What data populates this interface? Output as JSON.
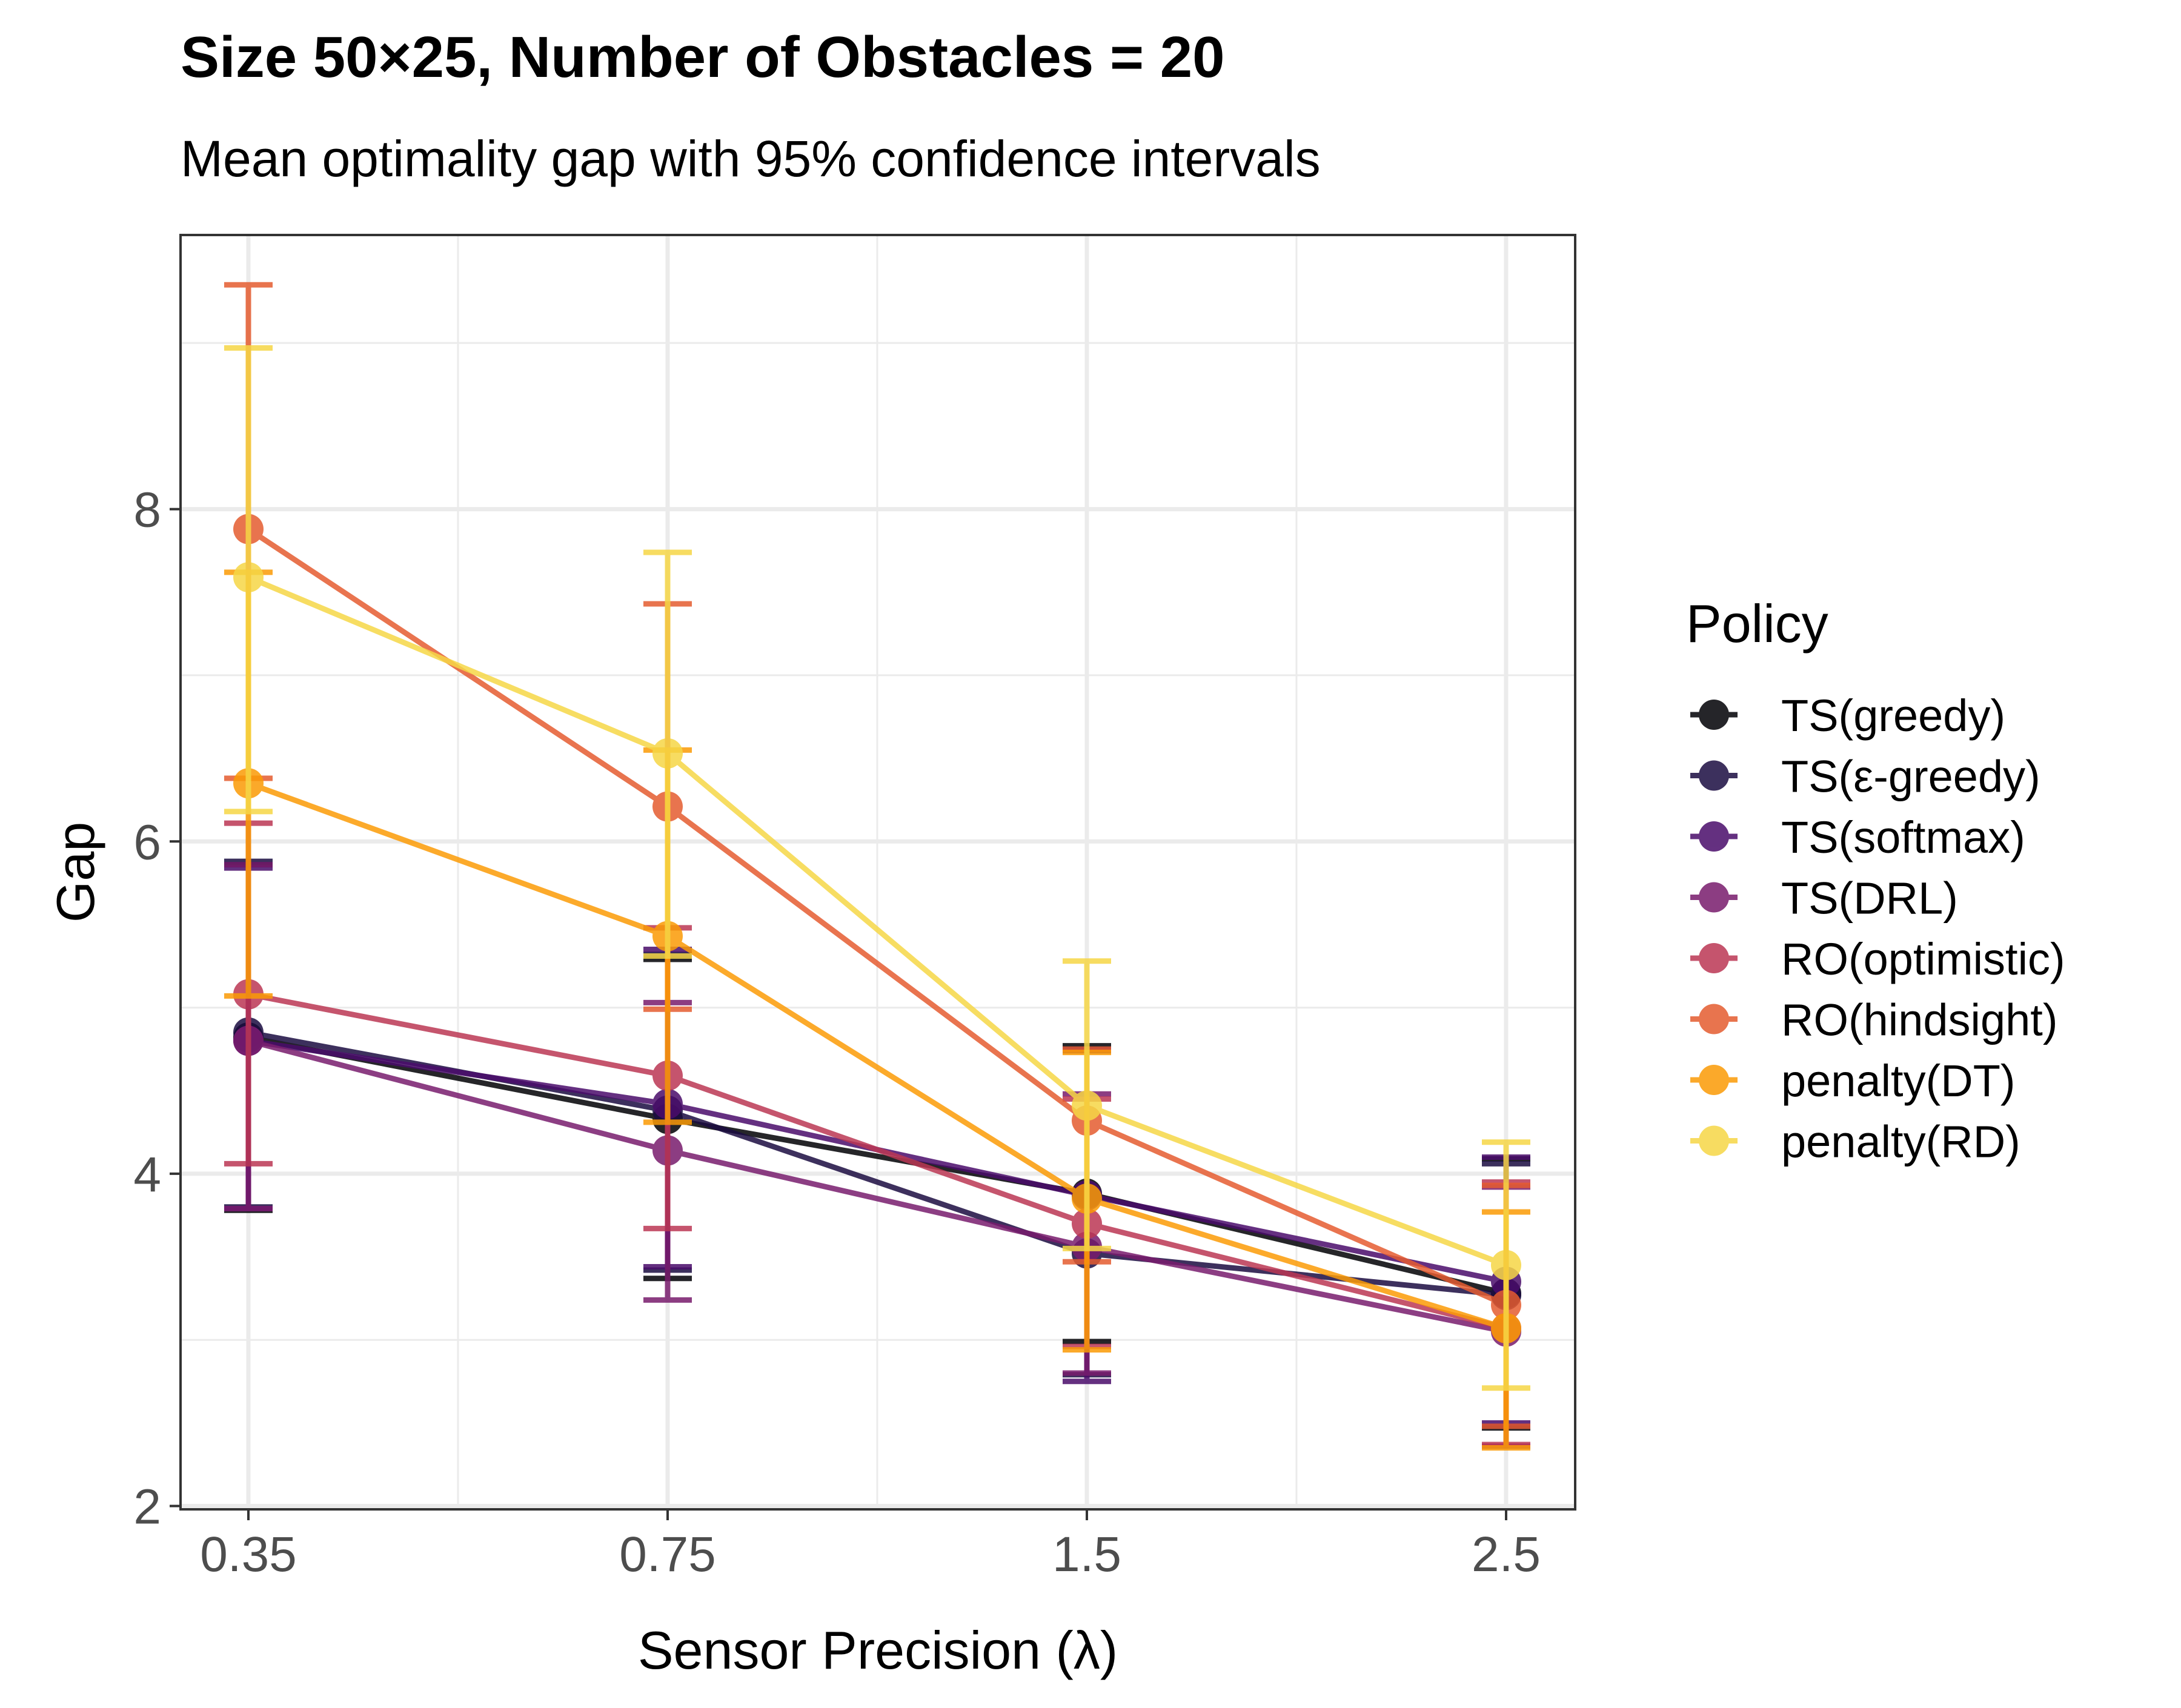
{
  "chart_data": {
    "type": "line",
    "title": "Size 50×25, Number of Obstacles = 20",
    "subtitle": "Mean optimality gap with 95% confidence intervals",
    "xlabel": "Sensor Precision (λ)",
    "ylabel": "Gap",
    "categories": [
      "0.35",
      "0.75",
      "1.5",
      "2.5"
    ],
    "ylim": [
      1.98,
      9.65
    ],
    "yticks": [
      2,
      4,
      6,
      8
    ],
    "grid": true,
    "legend_title": "Policy",
    "legend_position": "right",
    "series": [
      {
        "name": "TS(greedy)",
        "color": "#000004",
        "values": [
          4.82,
          4.33,
          3.88,
          3.28
        ],
        "lower": [
          3.78,
          3.37,
          2.99,
          2.47
        ],
        "upper": [
          5.86,
          5.29,
          4.77,
          4.09
        ]
      },
      {
        "name": "TS(ε-greedy)",
        "color": "#1b0c41",
        "values": [
          4.85,
          4.38,
          3.52,
          3.27
        ],
        "lower": [
          3.8,
          3.42,
          2.79,
          2.48
        ],
        "upper": [
          5.88,
          5.32,
          4.75,
          4.06
        ]
      },
      {
        "name": "TS(softmax)",
        "color": "#4a0c6b",
        "values": [
          4.8,
          4.42,
          3.87,
          3.35
        ],
        "lower": [
          3.79,
          3.44,
          2.75,
          2.5
        ],
        "upper": [
          5.84,
          5.35,
          4.74,
          4.1
        ]
      },
      {
        "name": "TS(DRL)",
        "color": "#781c6d",
        "values": [
          4.8,
          4.14,
          3.56,
          3.05
        ],
        "lower": [
          3.79,
          3.24,
          2.8,
          2.36
        ],
        "upper": [
          5.86,
          5.03,
          4.48,
          3.92
        ]
      },
      {
        "name": "RO(optimistic)",
        "color": "#bb3754",
        "values": [
          5.08,
          4.59,
          3.7,
          3.07
        ],
        "lower": [
          4.06,
          3.67,
          2.96,
          2.37
        ],
        "upper": [
          6.11,
          5.48,
          4.45,
          3.95
        ]
      },
      {
        "name": "RO(hindsight)",
        "color": "#e55c30",
        "values": [
          7.88,
          6.21,
          4.32,
          3.21
        ],
        "lower": [
          6.38,
          4.99,
          3.47,
          2.48
        ],
        "upper": [
          9.35,
          7.43,
          4.75,
          3.93
        ]
      },
      {
        "name": "penalty(DT)",
        "color": "#fb9b06",
        "values": [
          6.35,
          5.43,
          3.85,
          3.07
        ],
        "lower": [
          5.07,
          4.31,
          2.94,
          2.35
        ],
        "upper": [
          7.62,
          6.55,
          4.73,
          3.77
        ]
      },
      {
        "name": "penalty(RD)",
        "color": "#f6d746",
        "values": [
          7.59,
          6.53,
          4.41,
          3.45
        ],
        "lower": [
          6.18,
          5.31,
          3.55,
          2.71
        ],
        "upper": [
          8.97,
          7.74,
          5.28,
          4.19
        ]
      }
    ]
  }
}
